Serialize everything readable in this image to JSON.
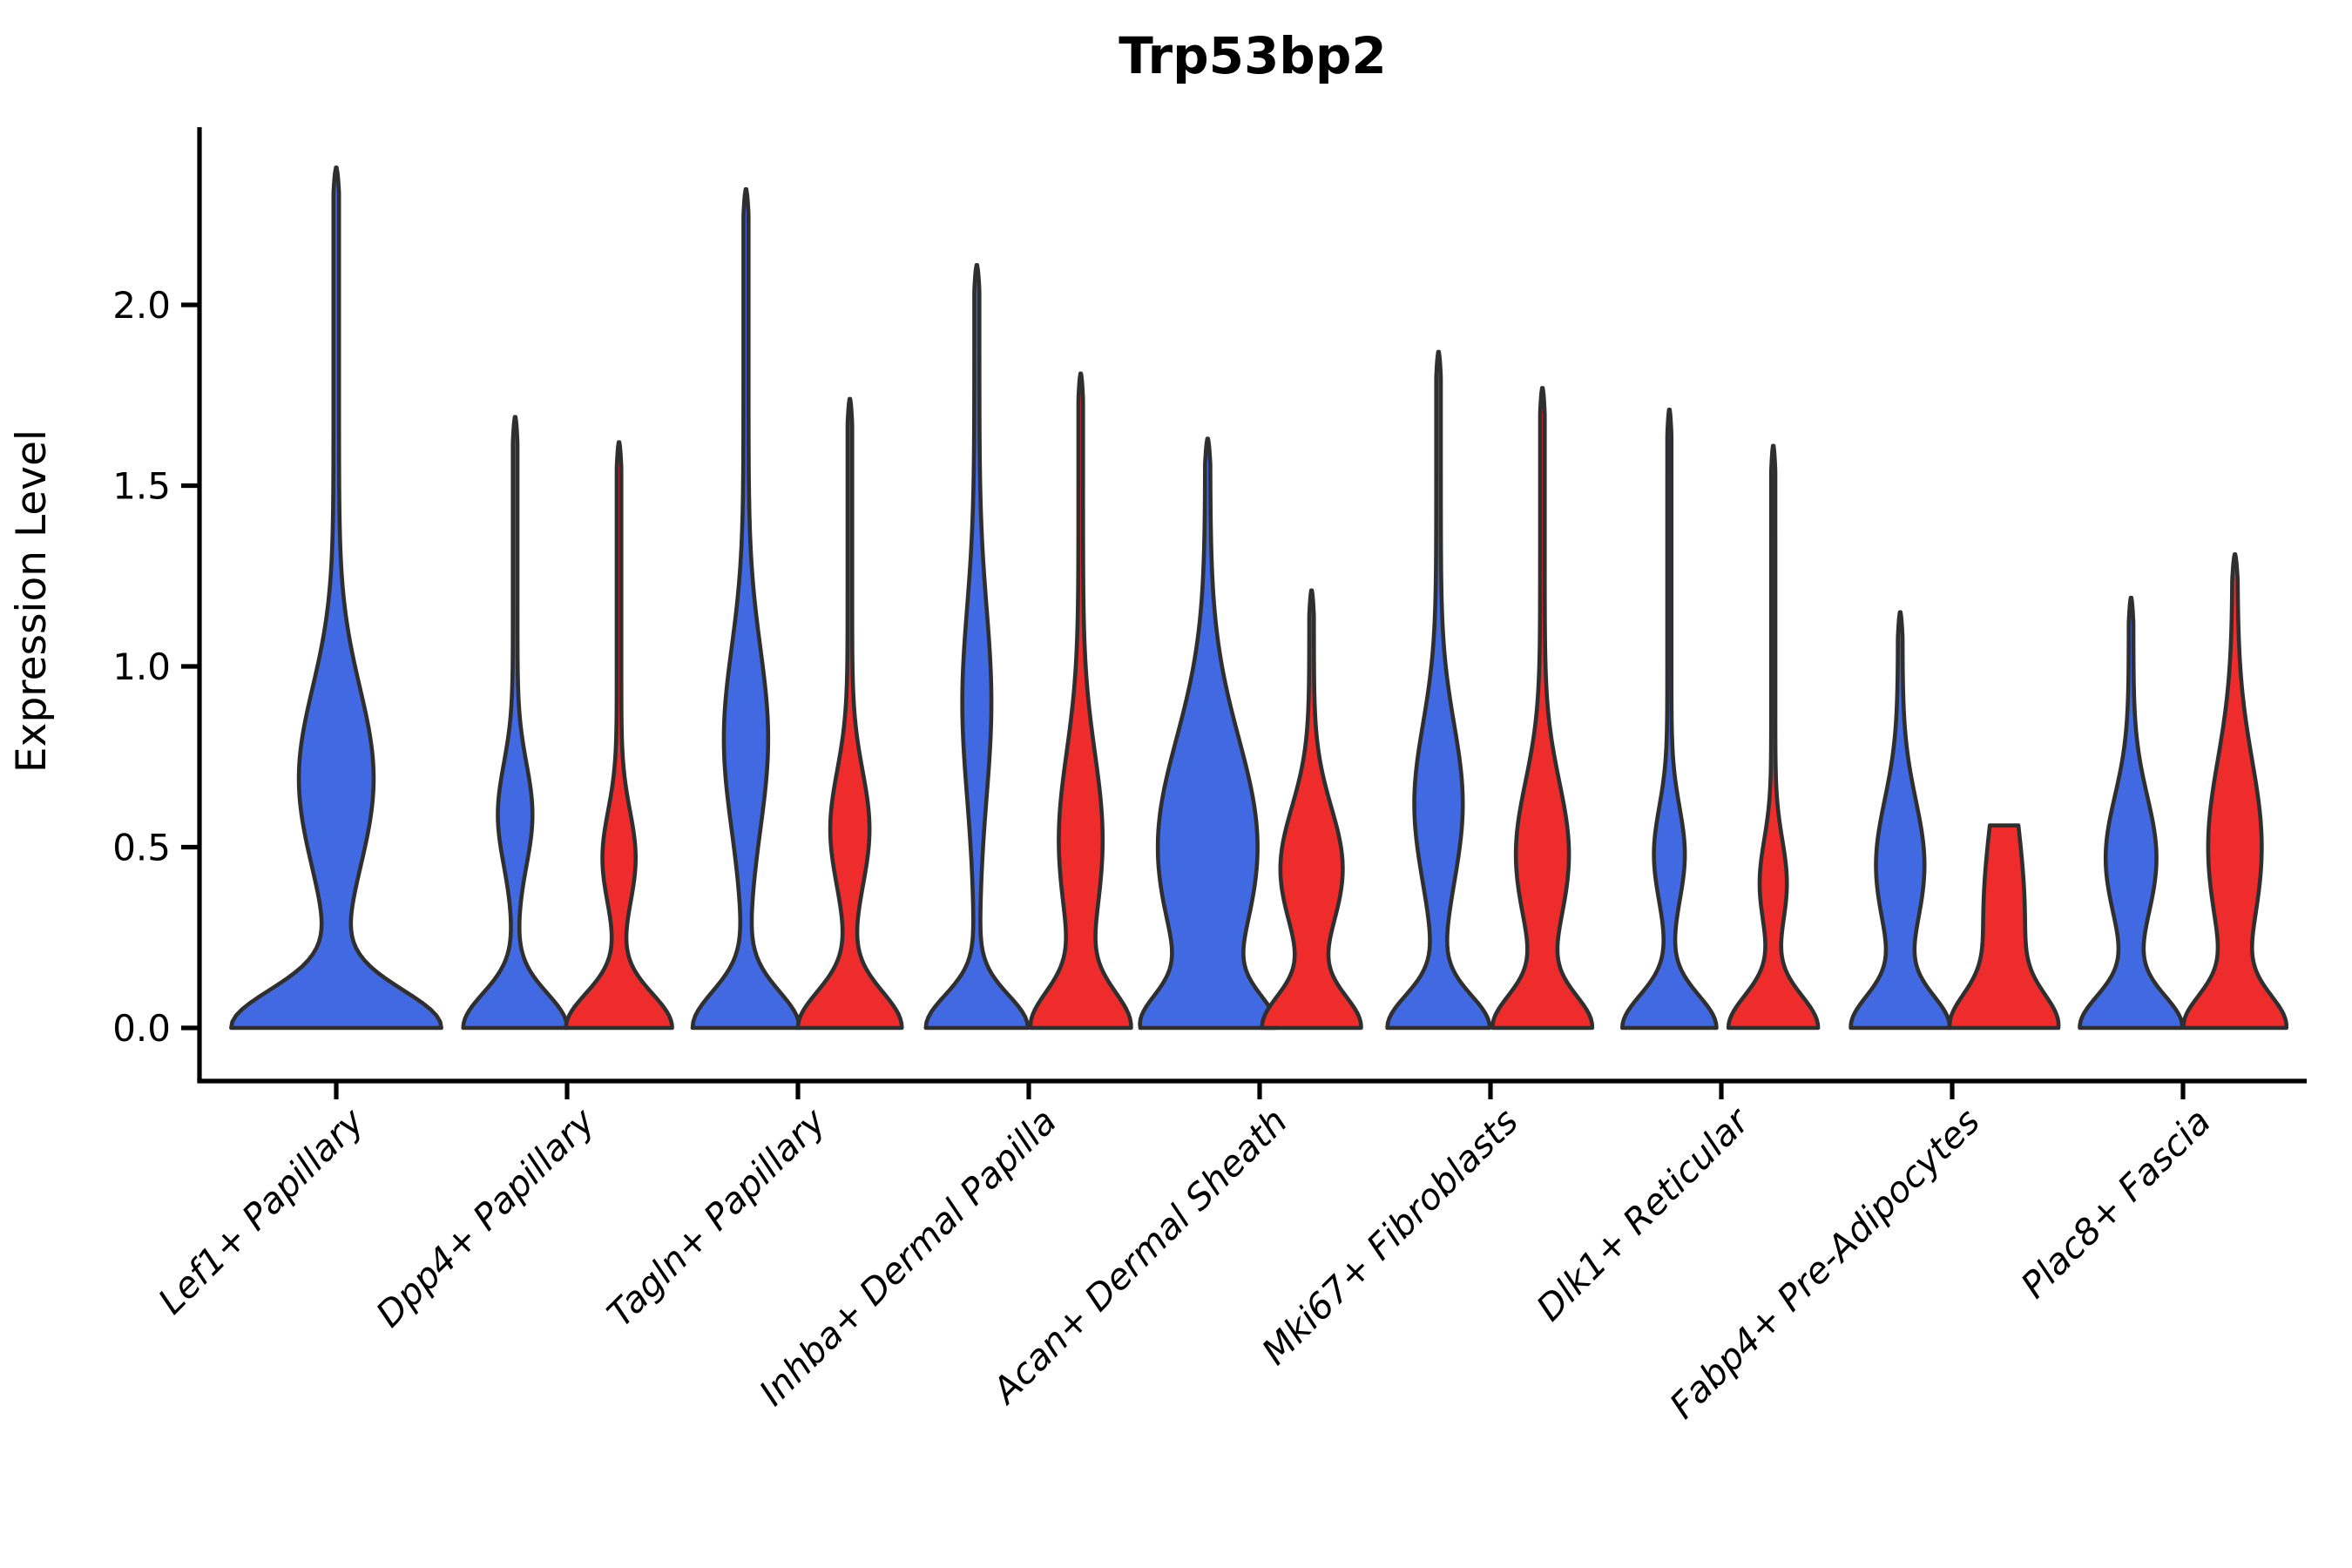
{
  "title": "Trp53bp2",
  "ylabel": "Expression Level",
  "chart_data": {
    "type": "violin",
    "title": "Trp53bp2",
    "xlabel": "",
    "ylabel": "Expression Level",
    "yticks": [
      0.0,
      0.5,
      1.0,
      1.5,
      2.0
    ],
    "ytick_labels": [
      "0.0",
      "0.5",
      "1.0",
      "1.5",
      "2.0"
    ],
    "ylim": [
      -0.15,
      2.45
    ],
    "grid": false,
    "legend": "none",
    "colors": {
      "blue": "#4169E1",
      "red": "#EE2C2C",
      "outline": "#2F2F2F",
      "axis": "#000000",
      "background": "#FFFFFF"
    },
    "categories": [
      "Lef1+ Papillary",
      "Dpp4+ Papillary",
      "Tagln+ Papillary",
      "Inhba+ Dermal Papilla",
      "Acan+ Dermal Sheath",
      "Mki67+ Fibroblasts",
      "Dlk1+ Reticular",
      "Fabp4+ Pre-Adipocytes",
      "Plac8+ Fascia"
    ],
    "violins": [
      {
        "category": "Lef1+ Papillary",
        "shapes": [
          {
            "group": "blue",
            "max": 2.38,
            "base": [
              0.44,
              0.105
            ],
            "bulge": [
              0.69,
              0.15,
              0.25
            ],
            "neck": 0.012
          }
        ]
      },
      {
        "category": "Dpp4+ Papillary",
        "shapes": [
          {
            "group": "blue",
            "max": 1.69,
            "base": [
              0.215,
              0.095
            ],
            "bulge": [
              0.59,
              0.065,
              0.14
            ],
            "neck": 0.01
          },
          {
            "group": "red",
            "max": 1.62,
            "base": [
              0.22,
              0.095
            ],
            "bulge": [
              0.47,
              0.062,
              0.13
            ],
            "neck": 0.01
          }
        ]
      },
      {
        "category": "Tagln+ Papillary",
        "shapes": [
          {
            "group": "blue",
            "max": 2.32,
            "base": [
              0.22,
              0.1
            ],
            "bulge": [
              0.8,
              0.085,
              0.25
            ],
            "neck": 0.011
          },
          {
            "group": "red",
            "max": 1.74,
            "base": [
              0.215,
              0.1
            ],
            "bulge": [
              0.55,
              0.075,
              0.16
            ],
            "neck": 0.01
          }
        ]
      },
      {
        "category": "Inhba+ Dermal Papilla",
        "shapes": [
          {
            "group": "blue",
            "max": 2.11,
            "base": [
              0.21,
              0.09
            ],
            "bulge": [
              0.9,
              0.052,
              0.26
            ],
            "neck": 0.011
          },
          {
            "group": "red",
            "max": 1.81,
            "base": [
              0.2,
              0.1
            ],
            "bulge": [
              0.52,
              0.085,
              0.24
            ],
            "neck": 0.01
          }
        ]
      },
      {
        "category": "Acan+ Dermal Sheath",
        "shapes": [
          {
            "group": "blue",
            "max": 1.63,
            "base": [
              0.23,
              0.09
            ],
            "bulge": [
              0.5,
              0.205,
              0.3
            ],
            "neck": 0.011
          },
          {
            "group": "red",
            "max": 1.21,
            "base": [
              0.2,
              0.09
            ],
            "bulge": [
              0.44,
              0.125,
              0.17
            ],
            "neck": 0.01
          }
        ]
      },
      {
        "category": "Mki67+ Fibroblasts",
        "shapes": [
          {
            "group": "blue",
            "max": 1.87,
            "base": [
              0.21,
              0.09
            ],
            "bulge": [
              0.62,
              0.095,
              0.22
            ],
            "neck": 0.01
          },
          {
            "group": "red",
            "max": 1.77,
            "base": [
              0.2,
              0.09
            ],
            "bulge": [
              0.48,
              0.105,
              0.2
            ],
            "neck": 0.01
          }
        ]
      },
      {
        "category": "Dlk1+ Reticular",
        "shapes": [
          {
            "group": "blue",
            "max": 1.71,
            "base": [
              0.195,
              0.09
            ],
            "bulge": [
              0.48,
              0.058,
              0.13
            ],
            "neck": 0.009
          },
          {
            "group": "red",
            "max": 1.61,
            "base": [
              0.185,
              0.09
            ],
            "bulge": [
              0.4,
              0.05,
              0.12
            ],
            "neck": 0.009
          }
        ]
      },
      {
        "category": "Fabp4+ Pre-Adipocytes",
        "shapes": [
          {
            "group": "blue",
            "max": 1.15,
            "base": [
              0.2,
              0.09
            ],
            "bulge": [
              0.45,
              0.095,
              0.18
            ],
            "neck": 0.01
          },
          {
            "group": "red",
            "max": 0.56,
            "base": [
              0.18,
              0.09
            ],
            "bulge": [
              0.3,
              0.08,
              0.28
            ],
            "neck": 0.01,
            "flat_top": true
          }
        ]
      },
      {
        "category": "Plac8+ Fascia",
        "shapes": [
          {
            "group": "blue",
            "max": 1.19,
            "base": [
              0.21,
              0.09
            ],
            "bulge": [
              0.47,
              0.1,
              0.17
            ],
            "neck": 0.01
          },
          {
            "group": "red",
            "max": 1.31,
            "base": [
              0.2,
              0.09
            ],
            "bulge": [
              0.5,
              0.105,
              0.24
            ],
            "neck": 0.011
          }
        ]
      }
    ]
  }
}
